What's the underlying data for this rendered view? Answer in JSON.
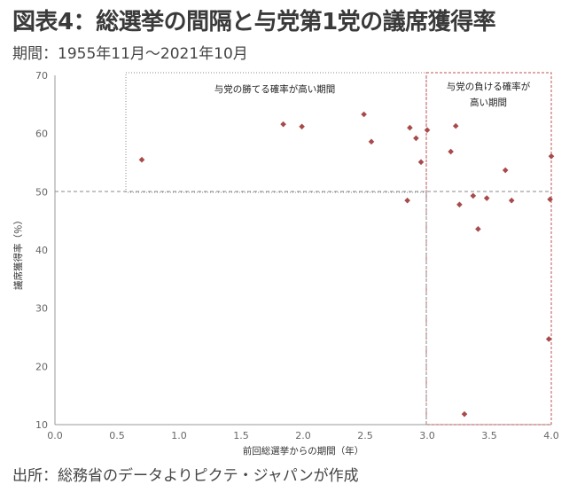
{
  "title": "図表4：総選挙の間隔と与党第1党の議席獲得率",
  "subtitle": "期間：1955年11月～2021年10月",
  "source": "出所：総務省のデータよりピクテ・ジャパンが作成",
  "chart_data": {
    "type": "scatter",
    "xlabel": "前回総選挙からの期間（年）",
    "ylabel": "議席獲得率（％）",
    "xlim": [
      0,
      4
    ],
    "ylim": [
      10,
      70
    ],
    "xticks": [
      "0.0",
      "0.5",
      "1.0",
      "1.5",
      "2.0",
      "2.5",
      "3.0",
      "3.5",
      "4.0"
    ],
    "yticks": [
      "10",
      "20",
      "30",
      "40",
      "50",
      "60",
      "70"
    ],
    "grid": false,
    "reference_lines": {
      "x": 3.0,
      "y": 50
    },
    "annotations": {
      "win": "与党の勝てる確率が高い期間",
      "lose_line1": "与党の負ける確率が",
      "lose_line2": "高い期間"
    },
    "colors": {
      "points": "#a84a4a",
      "lose_box": "#c05050",
      "win_box": "#888888",
      "refline": "#888888"
    },
    "points": [
      {
        "x": 0.7,
        "y": 55.5
      },
      {
        "x": 1.84,
        "y": 61.6
      },
      {
        "x": 1.99,
        "y": 61.2
      },
      {
        "x": 2.49,
        "y": 63.3
      },
      {
        "x": 2.55,
        "y": 58.6
      },
      {
        "x": 2.84,
        "y": 48.5
      },
      {
        "x": 2.86,
        "y": 61.0
      },
      {
        "x": 2.91,
        "y": 59.2
      },
      {
        "x": 2.95,
        "y": 55.1
      },
      {
        "x": 3.0,
        "y": 60.6
      },
      {
        "x": 3.19,
        "y": 56.9
      },
      {
        "x": 3.23,
        "y": 61.3
      },
      {
        "x": 3.26,
        "y": 47.8
      },
      {
        "x": 3.3,
        "y": 11.8
      },
      {
        "x": 3.37,
        "y": 49.3
      },
      {
        "x": 3.41,
        "y": 43.6
      },
      {
        "x": 3.48,
        "y": 48.9
      },
      {
        "x": 3.63,
        "y": 53.7
      },
      {
        "x": 3.68,
        "y": 48.5
      },
      {
        "x": 3.98,
        "y": 24.7
      },
      {
        "x": 3.99,
        "y": 48.7
      },
      {
        "x": 4.0,
        "y": 56.1
      }
    ]
  }
}
